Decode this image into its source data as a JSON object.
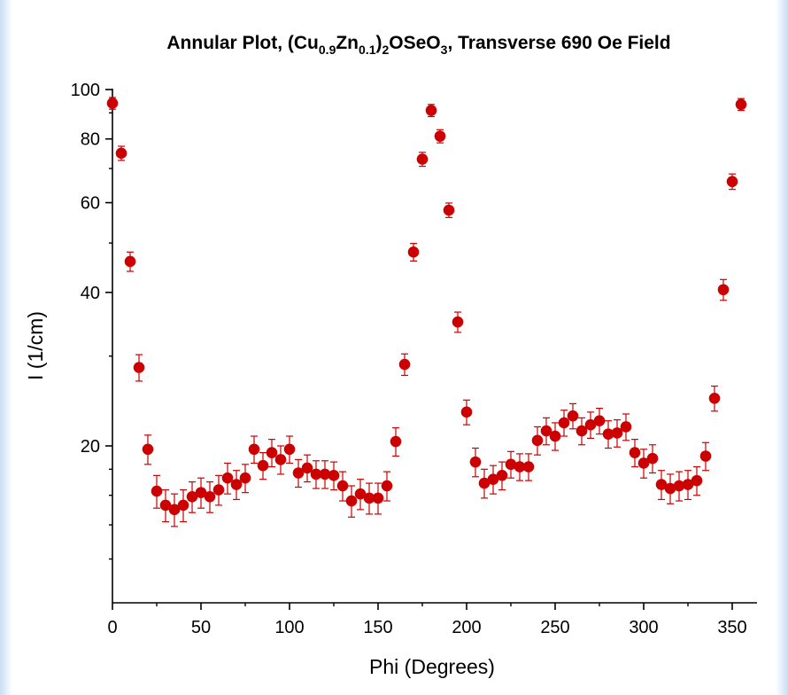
{
  "colors": {
    "marker": "#cc0000",
    "errorbar": "#cc0000",
    "axis": "#000000",
    "background_edge": "#c9ddf3"
  },
  "chart_data": {
    "type": "scatter",
    "title": {
      "segments": [
        {
          "text": "Annular Plot, (Cu",
          "style": "normal"
        },
        {
          "text": "0.9",
          "style": "sub"
        },
        {
          "text": "Zn",
          "style": "normal"
        },
        {
          "text": "0.1",
          "style": "sub"
        },
        {
          "text": ")",
          "style": "normal"
        },
        {
          "text": "2",
          "style": "sub"
        },
        {
          "text": "OSeO",
          "style": "normal"
        },
        {
          "text": "3",
          "style": "sub"
        },
        {
          "text": ", Transverse 690 Oe Field",
          "style": "normal"
        }
      ]
    },
    "xlabel": "Phi (Degrees)",
    "ylabel": "I (1/cm)",
    "xlim": [
      0,
      360
    ],
    "ylim": [
      11,
      100
    ],
    "yscale": "log",
    "xticks": [
      0,
      50,
      100,
      150,
      200,
      250,
      300,
      350
    ],
    "xtick_labels": [
      "0",
      "50",
      "100",
      "150",
      "200",
      "250",
      "300",
      "350"
    ],
    "xminor": [
      25,
      75,
      125,
      175,
      225,
      275,
      325
    ],
    "yticks": [
      20,
      40,
      60,
      80,
      100
    ],
    "ytick_labels": [
      "20",
      "40",
      "60",
      "80",
      "100"
    ],
    "yminor": [
      30,
      50,
      70,
      90
    ],
    "grid": false,
    "legend": "none",
    "series": [
      {
        "x": [
          0,
          5,
          10,
          15,
          20,
          25,
          30,
          35,
          40,
          45,
          50,
          55,
          60,
          65,
          70,
          75,
          80,
          85,
          90,
          95,
          100,
          105,
          110,
          115,
          120,
          125,
          130,
          135,
          140,
          145,
          150,
          155,
          160,
          165,
          170,
          175,
          180,
          185,
          190,
          195,
          200,
          205,
          210,
          215,
          220,
          225,
          230,
          235,
          240,
          245,
          250,
          255,
          260,
          265,
          270,
          275,
          280,
          285,
          290,
          295,
          300,
          305,
          310,
          315,
          320,
          325,
          330,
          335,
          340,
          345,
          350,
          355
        ],
        "y": [
          94,
          75,
          46,
          28.5,
          19.7,
          16.3,
          15.3,
          15,
          15.3,
          15.9,
          16.2,
          15.9,
          16.4,
          17.3,
          16.8,
          17.3,
          19.7,
          18.3,
          19.4,
          18.8,
          19.7,
          17.7,
          18.1,
          17.6,
          17.6,
          17.5,
          16.7,
          15.6,
          16.1,
          15.8,
          15.8,
          16.7,
          20.4,
          28.9,
          48,
          73,
          91,
          81,
          58,
          35,
          23.3,
          18.6,
          16.9,
          17.2,
          17.5,
          18.4,
          18.2,
          18.2,
          20.5,
          21.4,
          20.9,
          22.2,
          22.9,
          21.4,
          22,
          22.4,
          21.1,
          21.2,
          21.8,
          19.4,
          18.5,
          18.9,
          16.8,
          16.5,
          16.7,
          16.8,
          17.1,
          19.1,
          24.8,
          40.5,
          66,
          93.5
        ],
        "err": [
          2.5,
          2.4,
          2,
          1.7,
          1.3,
          1.2,
          1.1,
          1.1,
          1.1,
          1.1,
          1.1,
          1.1,
          1.1,
          1.2,
          1.1,
          1.1,
          1.2,
          1.1,
          1.2,
          1.2,
          1.2,
          1.1,
          1.1,
          1.1,
          1.1,
          1.1,
          1.1,
          1.1,
          1.1,
          1.1,
          1.1,
          1.1,
          1.3,
          1.4,
          1.9,
          2.3,
          2.5,
          2.4,
          1.9,
          1.6,
          1.3,
          1.2,
          1.1,
          1.1,
          1.1,
          1.1,
          1.1,
          1.1,
          1.3,
          1.3,
          1.3,
          1.3,
          1.3,
          1.3,
          1.3,
          1.3,
          1.3,
          1.3,
          1.3,
          1.2,
          1.2,
          1.2,
          1.1,
          1.1,
          1.1,
          1.1,
          1.1,
          1.2,
          1.4,
          1.9,
          2.3,
          2.5
        ]
      }
    ]
  }
}
